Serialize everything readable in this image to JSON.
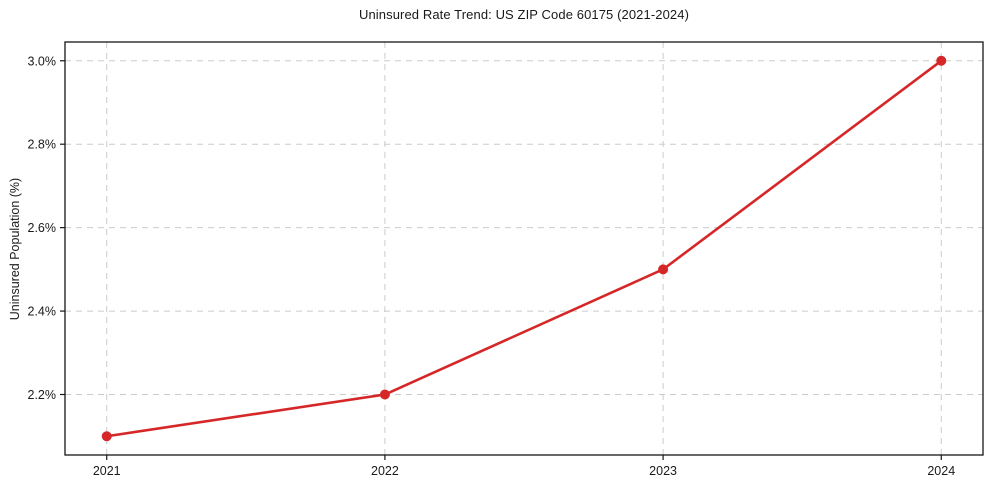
{
  "chart_data": {
    "type": "line",
    "title": "Uninsured Rate Trend: US ZIP Code 60175 (2021-2024)",
    "xlabel": "",
    "ylabel": "Uninsured Population (%)",
    "x": [
      2021,
      2022,
      2023,
      2024
    ],
    "y": [
      2.1,
      2.2,
      2.5,
      3.0
    ],
    "xticks": {
      "values": [
        2021,
        2022,
        2023,
        2024
      ],
      "labels": [
        "2021",
        "2022",
        "2023",
        "2024"
      ]
    },
    "yticks": {
      "values": [
        2.2,
        2.4,
        2.6,
        2.8,
        3.0
      ],
      "labels": [
        "2.2%",
        "2.4%",
        "2.6%",
        "2.8%",
        "3.0%"
      ]
    },
    "xlim": [
      2020.85,
      2024.15
    ],
    "ylim": [
      2.055,
      3.045
    ],
    "grid": true,
    "grid_style": "dashed",
    "legend": "none",
    "colors": {
      "line": "#d62728",
      "marker": "#d62728",
      "grid": "#cbcbcb",
      "spine": "#161616",
      "text": "#1a1a1a",
      "background": "#ffffff"
    },
    "marker": "circle"
  }
}
